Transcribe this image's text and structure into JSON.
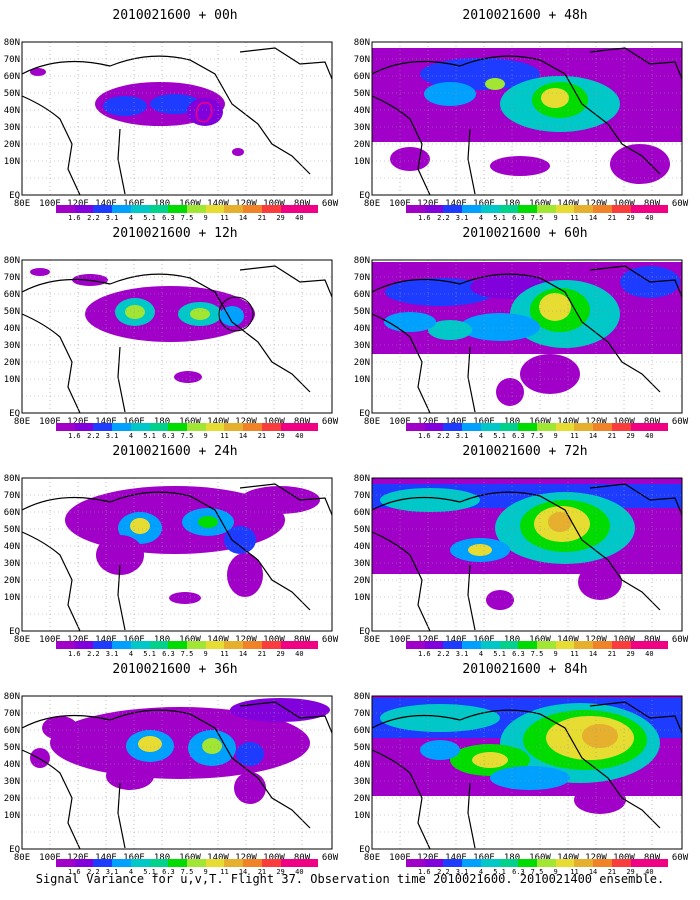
{
  "panels": [
    {
      "title": "2010021600 + 00h"
    },
    {
      "title": "2010021600 + 48h"
    },
    {
      "title": "2010021600 + 12h"
    },
    {
      "title": "2010021600 + 60h"
    },
    {
      "title": "2010021600 + 24h"
    },
    {
      "title": "2010021600 + 72h"
    },
    {
      "title": "2010021600 + 36h"
    },
    {
      "title": "2010021600 + 84h"
    }
  ],
  "axes": {
    "lat_labels": [
      "80N",
      "70N",
      "60N",
      "50N",
      "40N",
      "30N",
      "20N",
      "10N",
      "EQ"
    ],
    "lon_labels": [
      "80E",
      "100E",
      "120E",
      "140E",
      "160E",
      "180",
      "160W",
      "140W",
      "120W",
      "100W",
      "80W",
      "60W"
    ]
  },
  "colorbar": {
    "labels": [
      "1.6",
      "2.2",
      "3.1",
      "4",
      "5.1",
      "6.3",
      "7.5",
      "9",
      "11",
      "14",
      "21",
      "29",
      "40"
    ],
    "colors": [
      "#a000c8",
      "#8200dc",
      "#1e3cff",
      "#00a0ff",
      "#00c8c8",
      "#00d28c",
      "#00dc00",
      "#a0e632",
      "#e6dc32",
      "#e6af2d",
      "#f08228",
      "#fa3c3c",
      "#f00082"
    ]
  },
  "caption": "Signal Variance for u,v,T. Flight 37. Observation time 2010021600. 2010021400 ensemble."
}
